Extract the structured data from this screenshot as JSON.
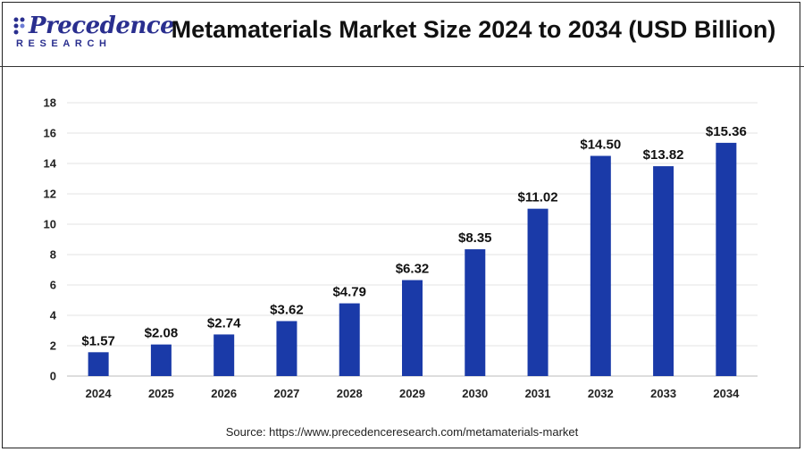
{
  "header": {
    "logo_main": "Precedence",
    "logo_sub": "RESEARCH",
    "title": "Metamaterials Market Size 2024 to 2034 (USD Billion)"
  },
  "source": "Source: https://www.precedenceresearch.com/metamaterials-market",
  "colors": {
    "bar": "#1a3aa8",
    "logo": "#2a2f8f",
    "grid": "#e3e3e3"
  },
  "chart_data": {
    "type": "bar",
    "title": "Metamaterials Market Size 2024 to 2034 (USD Billion)",
    "categories": [
      "2024",
      "2025",
      "2026",
      "2027",
      "2028",
      "2029",
      "2030",
      "2031",
      "2032",
      "2033",
      "2034"
    ],
    "values": [
      1.57,
      2.08,
      2.74,
      3.62,
      4.79,
      6.32,
      8.35,
      11.02,
      14.5,
      13.82,
      15.36
    ],
    "value_labels": [
      "$1.57",
      "$2.08",
      "$2.74",
      "$3.62",
      "$4.79",
      "$6.32",
      "$8.35",
      "$11.02",
      "$14.50",
      "$13.82",
      "$15.36"
    ],
    "ylim": [
      0,
      18
    ],
    "yticks": [
      0,
      2,
      4,
      6,
      8,
      10,
      12,
      14,
      16,
      18
    ],
    "grid": true,
    "legend": "none"
  }
}
